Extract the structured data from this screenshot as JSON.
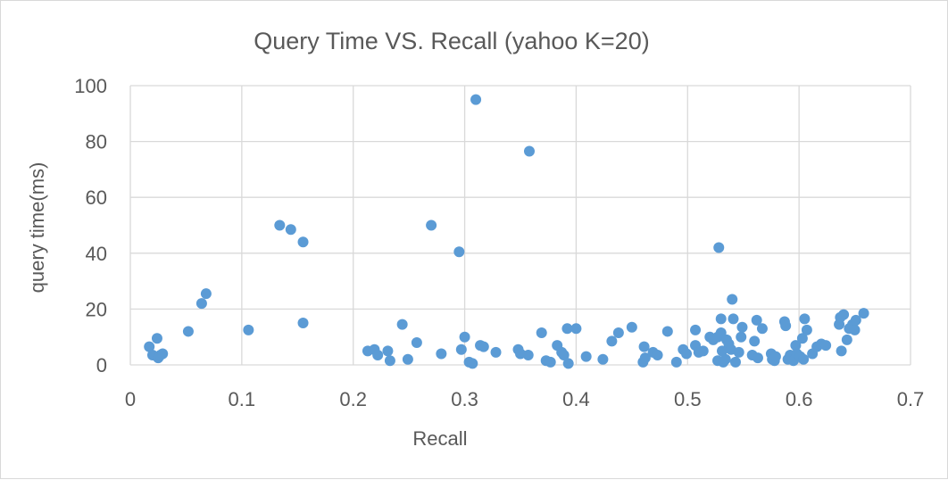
{
  "chart_data": {
    "type": "scatter",
    "title": "Query Time VS. Recall (yahoo K=20)",
    "xlabel": "Recall",
    "ylabel": "query time(ms)",
    "xlim": [
      0,
      0.7
    ],
    "ylim": [
      0,
      100
    ],
    "xticks": [
      "0",
      "0.1",
      "0.2",
      "0.3",
      "0.4",
      "0.5",
      "0.6",
      "0.7"
    ],
    "yticks": [
      "0",
      "20",
      "40",
      "60",
      "80",
      "100"
    ],
    "grid": true,
    "legend": "none",
    "color": "#5b9bd5",
    "points": [
      [
        0.017,
        6.5
      ],
      [
        0.02,
        3.5
      ],
      [
        0.024,
        9.5
      ],
      [
        0.025,
        2.5
      ],
      [
        0.027,
        3.5
      ],
      [
        0.029,
        4.0
      ],
      [
        0.052,
        12.0
      ],
      [
        0.064,
        22.0
      ],
      [
        0.068,
        25.5
      ],
      [
        0.106,
        12.5
      ],
      [
        0.134,
        50.0
      ],
      [
        0.144,
        48.5
      ],
      [
        0.155,
        44.0
      ],
      [
        0.155,
        15.0
      ],
      [
        0.213,
        5.0
      ],
      [
        0.219,
        5.5
      ],
      [
        0.222,
        3.5
      ],
      [
        0.231,
        5.0
      ],
      [
        0.233,
        1.5
      ],
      [
        0.244,
        14.5
      ],
      [
        0.249,
        2.0
      ],
      [
        0.257,
        8.0
      ],
      [
        0.27,
        50.0
      ],
      [
        0.279,
        4.0
      ],
      [
        0.295,
        40.5
      ],
      [
        0.297,
        5.5
      ],
      [
        0.3,
        10.0
      ],
      [
        0.304,
        1.0
      ],
      [
        0.307,
        0.5
      ],
      [
        0.31,
        95.0
      ],
      [
        0.314,
        7.0
      ],
      [
        0.317,
        6.5
      ],
      [
        0.328,
        4.5
      ],
      [
        0.348,
        5.5
      ],
      [
        0.35,
        4.0
      ],
      [
        0.357,
        3.5
      ],
      [
        0.358,
        76.5
      ],
      [
        0.369,
        11.5
      ],
      [
        0.373,
        1.5
      ],
      [
        0.377,
        1.0
      ],
      [
        0.383,
        7.0
      ],
      [
        0.387,
        4.5
      ],
      [
        0.389,
        3.5
      ],
      [
        0.392,
        13.0
      ],
      [
        0.393,
        0.5
      ],
      [
        0.4,
        13.0
      ],
      [
        0.409,
        3.0
      ],
      [
        0.424,
        2.0
      ],
      [
        0.432,
        8.5
      ],
      [
        0.438,
        11.5
      ],
      [
        0.45,
        13.5
      ],
      [
        0.46,
        1.0
      ],
      [
        0.461,
        6.5
      ],
      [
        0.462,
        2.5
      ],
      [
        0.469,
        4.5
      ],
      [
        0.473,
        3.5
      ],
      [
        0.482,
        12.0
      ],
      [
        0.49,
        1.0
      ],
      [
        0.496,
        5.5
      ],
      [
        0.499,
        4.0
      ],
      [
        0.507,
        7.0
      ],
      [
        0.507,
        12.5
      ],
      [
        0.51,
        4.5
      ],
      [
        0.514,
        5.0
      ],
      [
        0.52,
        10.0
      ],
      [
        0.523,
        9.0
      ],
      [
        0.527,
        10.0
      ],
      [
        0.527,
        1.5
      ],
      [
        0.528,
        42.0
      ],
      [
        0.53,
        16.5
      ],
      [
        0.53,
        11.5
      ],
      [
        0.531,
        5.0
      ],
      [
        0.532,
        1.0
      ],
      [
        0.534,
        2.0
      ],
      [
        0.535,
        9.0
      ],
      [
        0.537,
        7.5
      ],
      [
        0.539,
        5.5
      ],
      [
        0.54,
        23.5
      ],
      [
        0.541,
        16.5
      ],
      [
        0.543,
        1.0
      ],
      [
        0.546,
        4.5
      ],
      [
        0.548,
        10.0
      ],
      [
        0.549,
        13.5
      ],
      [
        0.558,
        3.5
      ],
      [
        0.56,
        8.5
      ],
      [
        0.562,
        16.0
      ],
      [
        0.563,
        2.5
      ],
      [
        0.567,
        13.0
      ],
      [
        0.575,
        4.0
      ],
      [
        0.576,
        2.0
      ],
      [
        0.578,
        1.5
      ],
      [
        0.579,
        3.0
      ],
      [
        0.587,
        15.5
      ],
      [
        0.588,
        14.0
      ],
      [
        0.59,
        2.0
      ],
      [
        0.592,
        3.5
      ],
      [
        0.595,
        1.5
      ],
      [
        0.597,
        7.0
      ],
      [
        0.598,
        4.0
      ],
      [
        0.601,
        3.0
      ],
      [
        0.603,
        9.5
      ],
      [
        0.604,
        2.0
      ],
      [
        0.605,
        16.5
      ],
      [
        0.607,
        12.5
      ],
      [
        0.612,
        4.0
      ],
      [
        0.616,
        6.5
      ],
      [
        0.62,
        7.5
      ],
      [
        0.624,
        7.0
      ],
      [
        0.636,
        14.5
      ],
      [
        0.637,
        17.0
      ],
      [
        0.638,
        5.0
      ],
      [
        0.64,
        18.0
      ],
      [
        0.643,
        9.0
      ],
      [
        0.645,
        13.0
      ],
      [
        0.648,
        14.5
      ],
      [
        0.65,
        12.5
      ],
      [
        0.651,
        16.0
      ],
      [
        0.658,
        18.5
      ]
    ]
  }
}
